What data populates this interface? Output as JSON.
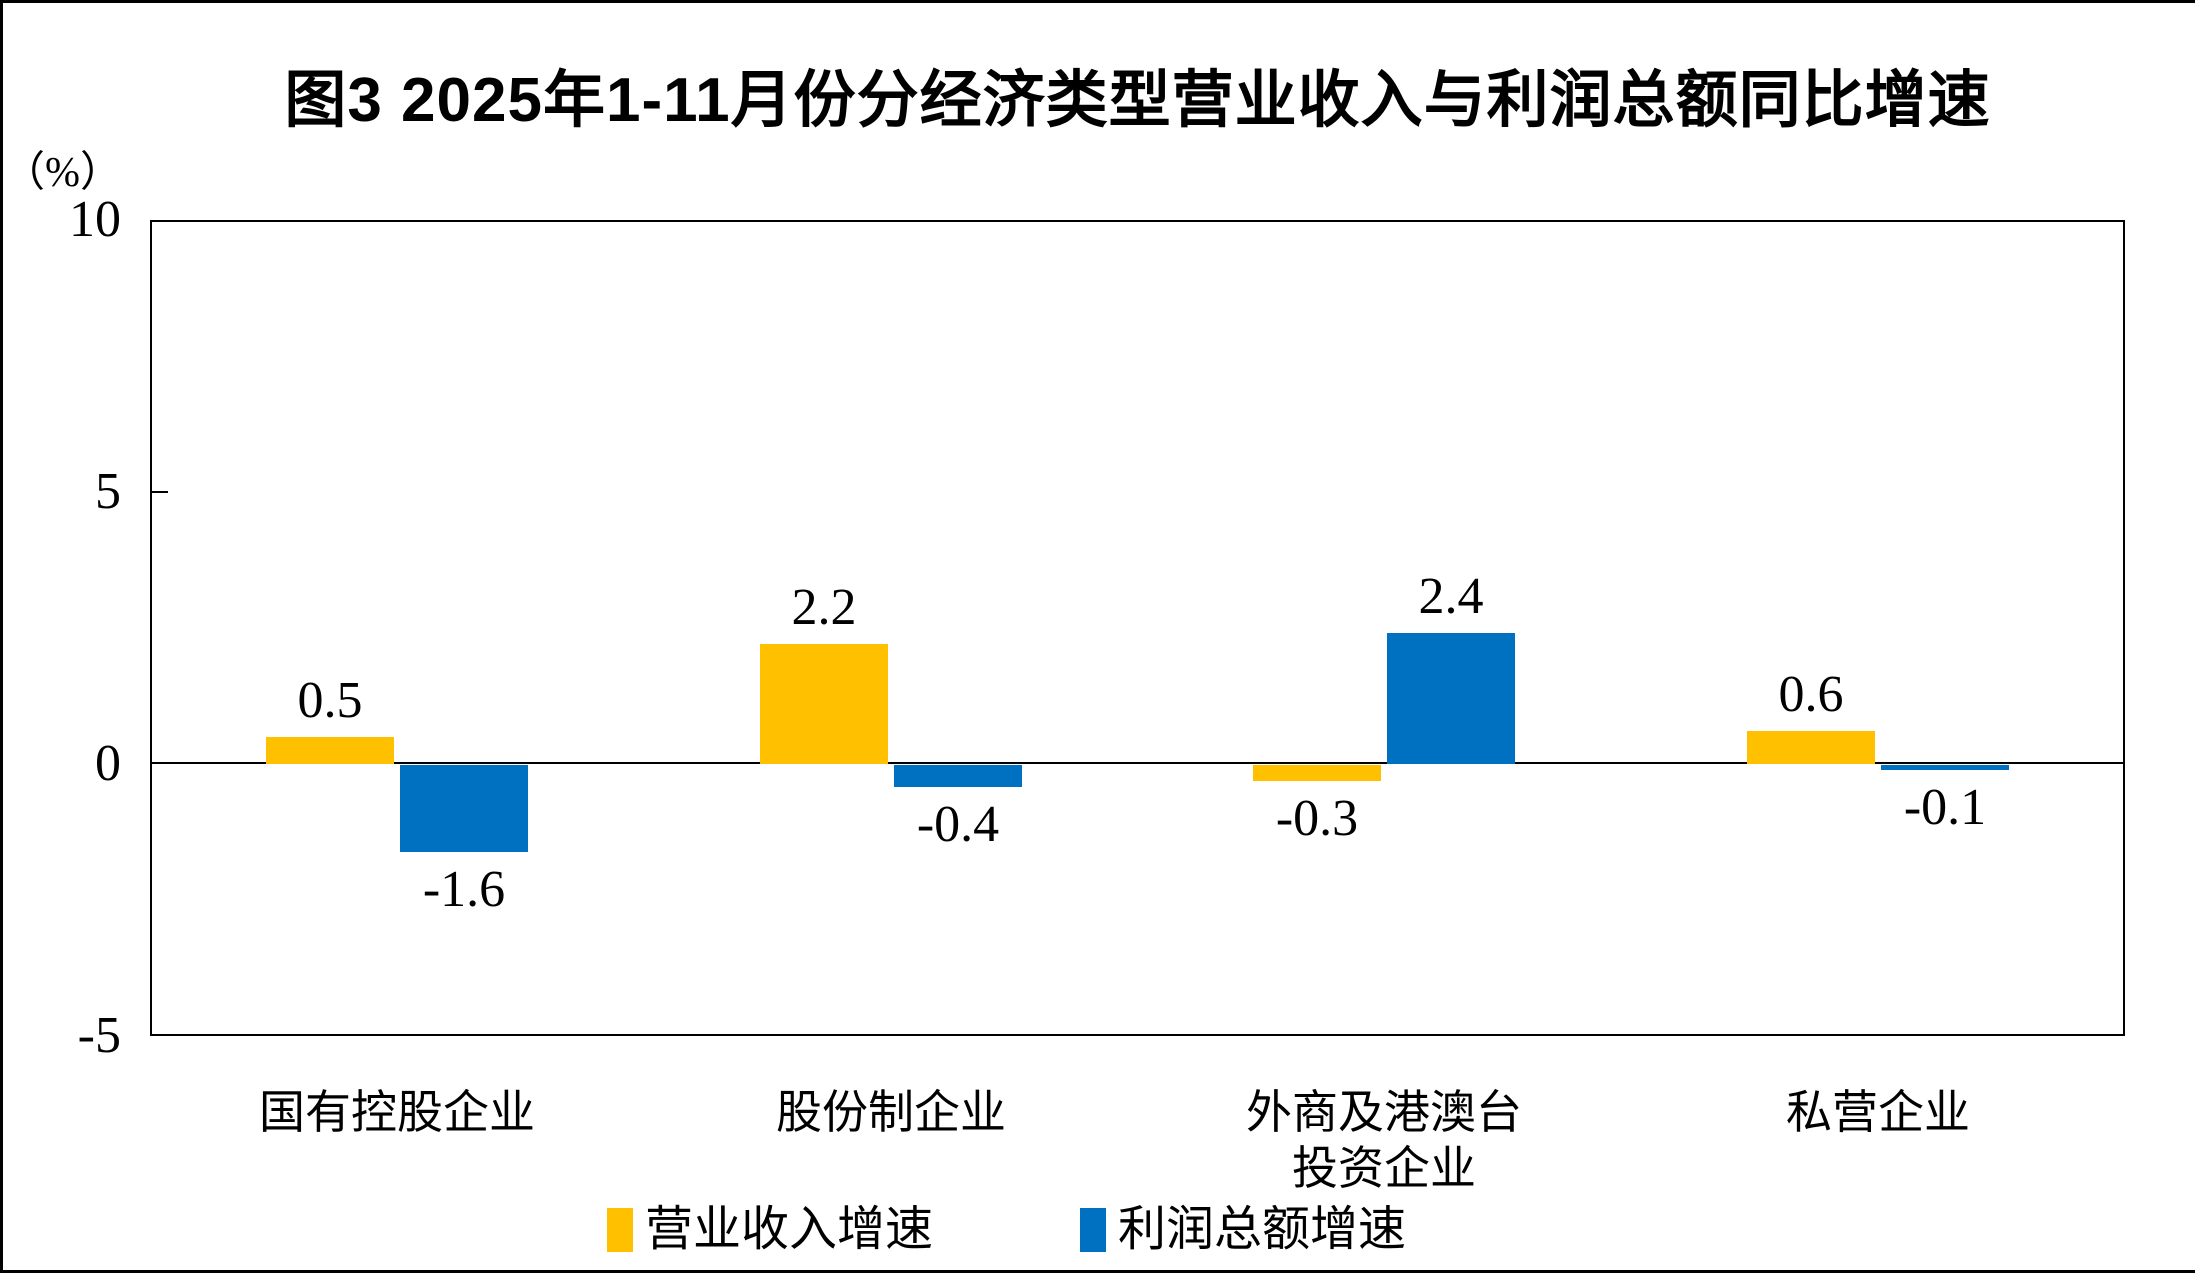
{
  "chart_data": {
    "type": "bar",
    "title": "图3  2025年1-11月份分经济类型营业收入与利润总额同比增速",
    "unit_label": "（%）",
    "categories": [
      "国有控股企业",
      "股份制企业",
      "外商及港澳台\n投资企业",
      "私营企业"
    ],
    "series": [
      {
        "name": "营业收入增速",
        "color": "#FFC000",
        "values": [
          0.5,
          2.2,
          -0.3,
          0.6
        ]
      },
      {
        "name": "利润总额增速",
        "color": "#0070C0",
        "values": [
          -1.6,
          -0.4,
          2.4,
          -0.1
        ]
      }
    ],
    "data_labels": [
      "0.5",
      "2.2",
      "-0.3",
      "0.6",
      "-1.6",
      "-0.4",
      "2.4",
      "-0.1"
    ],
    "ylim": [
      -5,
      10
    ],
    "yticks": [
      "10",
      "5",
      "0",
      "-5"
    ],
    "grid": false,
    "legend_position": "bottom",
    "axis_color": "#000000",
    "background_color": "#FFFFFF"
  }
}
